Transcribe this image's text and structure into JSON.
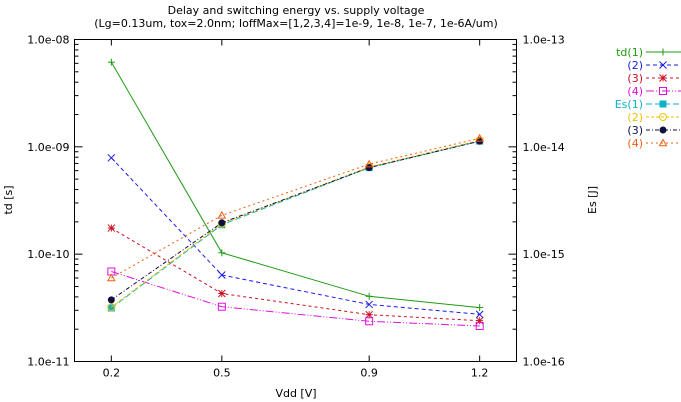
{
  "chart_data": {
    "type": "line",
    "title": "Delay and switching energy vs. supply voltage",
    "subtitle": "(Lg=0.13um, tox=2.0nm;  IoffMax=[1,2,3,4]=1e-9, 1e-8, 1e-7, 1e-6A/um)",
    "xlabel": "Vdd [V]",
    "ylabel": "td [s]",
    "y2label": "Es [J]",
    "xlim": [
      0.1,
      1.3
    ],
    "ylim": [
      1e-11,
      1e-08
    ],
    "y2lim": [
      1e-16,
      1e-13
    ],
    "yscale": "log",
    "y2scale": "log",
    "grid": false,
    "legend_placement": "outside-right-top",
    "x_ticks": [
      "0.2",
      "0.5",
      "0.9",
      "1.2"
    ],
    "y_ticks": [
      "1.0e-08",
      "1.0e-09",
      "1.0e-10",
      "1.0e-11"
    ],
    "y2_ticks": [
      "1.0e-13",
      "1.0e-14",
      "1.0e-15",
      "1.0e-16"
    ],
    "x": [
      0.2,
      0.5,
      0.9,
      1.2
    ],
    "series": [
      {
        "name": "td(1)",
        "axis": "y",
        "color": "#1e9a14",
        "marker": "plus",
        "dash": "",
        "values": [
          6.15e-09,
          1.03e-10,
          4.05e-11,
          3.18e-11
        ]
      },
      {
        "name": "(2)",
        "axis": "y",
        "color": "#1a1aee",
        "marker": "cross",
        "dash": "4,3",
        "values": [
          7.9e-10,
          6.4e-11,
          3.4e-11,
          2.75e-11
        ]
      },
      {
        "name": "(3)",
        "axis": "y",
        "color": "#cc1020",
        "marker": "star",
        "dash": "3,3",
        "values": [
          1.75e-10,
          4.3e-11,
          2.73e-11,
          2.4e-11
        ]
      },
      {
        "name": "(4)",
        "axis": "y",
        "color": "#dd10dd",
        "marker": "box",
        "dash": "8,2,1,2,1,2",
        "values": [
          6.9e-11,
          3.24e-11,
          2.37e-11,
          2.14e-11
        ]
      },
      {
        "name": "Es(1)",
        "axis": "y2",
        "color": "#10b0c8",
        "marker": "boxfilled",
        "dash": "6,3",
        "values": [
          3.15e-16,
          1.88e-15,
          6.4e-15,
          1.13e-14
        ]
      },
      {
        "name": "(2)",
        "axis": "y2",
        "color": "#f0c000",
        "marker": "circle",
        "dash": "3,2",
        "values": [
          3.2e-16,
          1.92e-15,
          6.5e-15,
          1.15e-14
        ]
      },
      {
        "name": "(3)",
        "axis": "y2",
        "color": "#101040",
        "marker": "circlefilled",
        "dash": "4,2,1,2",
        "values": [
          3.75e-16,
          1.96e-15,
          6.4e-15,
          1.13e-14
        ]
      },
      {
        "name": "(4)",
        "axis": "y2",
        "color": "#f06010",
        "marker": "triangle",
        "dash": "2,3",
        "values": [
          6e-16,
          2.3e-15,
          6.9e-15,
          1.2e-14
        ]
      }
    ]
  }
}
